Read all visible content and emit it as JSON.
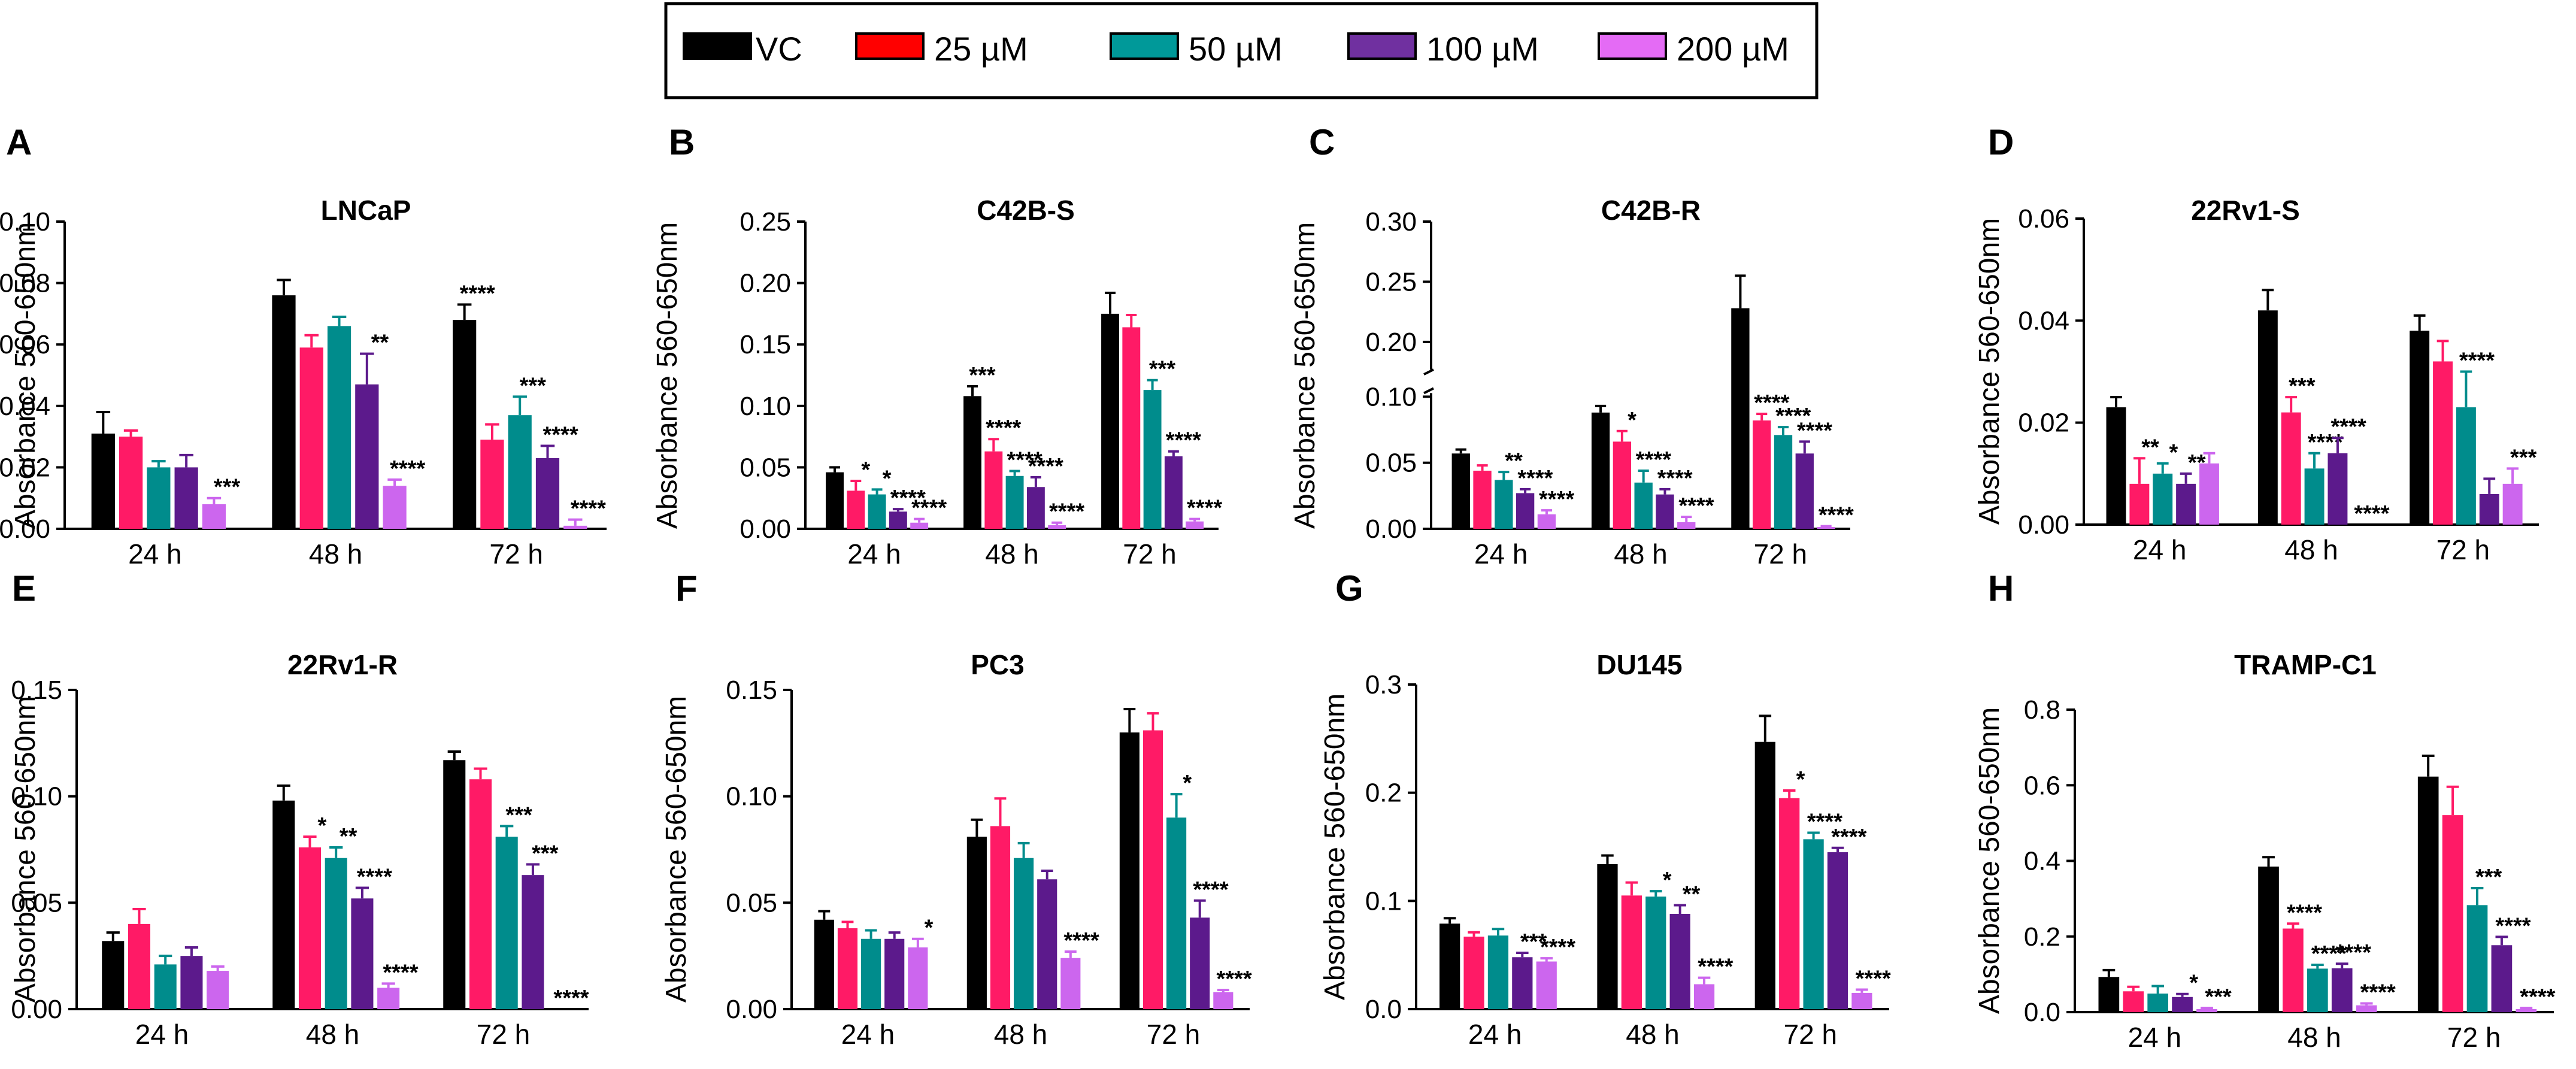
{
  "legend": {
    "items": [
      {
        "label": "VC",
        "color": "#000000"
      },
      {
        "label": "25 µM",
        "color": "#ff0000"
      },
      {
        "label": "50 µM",
        "color": "#009999"
      },
      {
        "label": "100 µM",
        "color": "#7030a0"
      },
      {
        "label": "200 µM",
        "color": "#e46bf5"
      }
    ]
  },
  "bar_colors": [
    "#000000",
    "#ff1a66",
    "#008c8c",
    "#5c1a8c",
    "#cc66ee"
  ],
  "chart_data": [
    {
      "panel": "A",
      "type": "bar",
      "title": "LNCaP",
      "ylabel": "Absorbance 560-650nm",
      "ylim": [
        0,
        0.1
      ],
      "yticks": [
        "0.00",
        "0.02",
        "0.04",
        "0.06",
        "0.08",
        "0.10"
      ],
      "categories": [
        "24 h",
        "48 h",
        "72 h"
      ],
      "series": [
        {
          "name": "VC",
          "values": [
            0.031,
            0.076,
            0.068
          ],
          "errors": [
            0.007,
            0.005,
            0.005
          ]
        },
        {
          "name": "25 µM",
          "values": [
            0.03,
            0.059,
            0.029
          ],
          "errors": [
            0.002,
            0.004,
            0.005
          ]
        },
        {
          "name": "50 µM",
          "values": [
            0.02,
            0.066,
            0.037
          ],
          "errors": [
            0.002,
            0.003,
            0.006
          ]
        },
        {
          "name": "100 µM",
          "values": [
            0.02,
            0.047,
            0.023
          ],
          "errors": [
            0.004,
            0.01,
            0.004
          ]
        },
        {
          "name": "200 µM",
          "values": [
            0.008,
            0.014,
            0.001
          ],
          "errors": [
            0.002,
            0.002,
            0.002
          ]
        }
      ],
      "stars": [
        [
          "",
          "",
          "",
          "",
          "***"
        ],
        [
          "",
          "",
          "",
          "**",
          "****"
        ],
        [
          "****",
          "",
          "***",
          "****",
          "****"
        ]
      ]
    },
    {
      "panel": "B",
      "type": "bar",
      "title": "C42B-S",
      "ylabel": "Absorbance 560-650nm",
      "ylim": [
        0,
        0.25
      ],
      "yticks": [
        "0.00",
        "0.05",
        "0.10",
        "0.15",
        "0.20",
        "0.25"
      ],
      "categories": [
        "24 h",
        "48 h",
        "72 h"
      ],
      "series": [
        {
          "name": "VC",
          "values": [
            0.046,
            0.108,
            0.175
          ],
          "errors": [
            0.004,
            0.008,
            0.017
          ]
        },
        {
          "name": "25 µM",
          "values": [
            0.031,
            0.063,
            0.164
          ],
          "errors": [
            0.008,
            0.01,
            0.01
          ]
        },
        {
          "name": "50 µM",
          "values": [
            0.028,
            0.043,
            0.113
          ],
          "errors": [
            0.004,
            0.004,
            0.008
          ]
        },
        {
          "name": "100 µM",
          "values": [
            0.014,
            0.034,
            0.059
          ],
          "errors": [
            0.002,
            0.008,
            0.004
          ]
        },
        {
          "name": "200 µM",
          "values": [
            0.005,
            0.003,
            0.006
          ],
          "errors": [
            0.003,
            0.002,
            0.002
          ]
        }
      ],
      "stars": [
        [
          "",
          "*",
          "*",
          "****",
          "****"
        ],
        [
          "***",
          "****",
          "****",
          "****",
          "****"
        ],
        [
          "",
          "",
          "***",
          "****",
          "****"
        ]
      ]
    },
    {
      "panel": "C",
      "type": "bar",
      "title": "C42B-R",
      "ylabel": "Absorbance 560-650nm",
      "ylim": [
        0,
        0.3
      ],
      "ybreak": [
        0.1,
        0.18
      ],
      "yticks": [
        "0.00",
        "0.05",
        "0.10",
        "0.20",
        "0.25",
        "0.30"
      ],
      "categories": [
        "24 h",
        "48 h",
        "72 h"
      ],
      "series": [
        {
          "name": "VC",
          "values": [
            0.057,
            0.088,
            0.228
          ],
          "errors": [
            0.003,
            0.005,
            0.027
          ]
        },
        {
          "name": "25 µM",
          "values": [
            0.044,
            0.066,
            0.082
          ],
          "errors": [
            0.004,
            0.008,
            0.005
          ]
        },
        {
          "name": "50 µM",
          "values": [
            0.037,
            0.035,
            0.071
          ],
          "errors": [
            0.006,
            0.009,
            0.006
          ]
        },
        {
          "name": "100 µM",
          "values": [
            0.027,
            0.026,
            0.057
          ],
          "errors": [
            0.003,
            0.004,
            0.009
          ]
        },
        {
          "name": "200 µM",
          "values": [
            0.011,
            0.005,
            0.001
          ],
          "errors": [
            0.003,
            0.004,
            0.001
          ]
        }
      ],
      "stars": [
        [
          "",
          "",
          "**",
          "****",
          "****"
        ],
        [
          "",
          "*",
          "****",
          "****",
          "****"
        ],
        [
          "",
          "****",
          "****",
          "****",
          "****"
        ]
      ]
    },
    {
      "panel": "D",
      "type": "bar",
      "title": "22Rv1-S",
      "ylabel": "Absorbance 560-650nm",
      "ylim": [
        0,
        0.06
      ],
      "yticks": [
        "0.00",
        "0.02",
        "0.04",
        "0.06"
      ],
      "categories": [
        "24 h",
        "48 h",
        "72 h"
      ],
      "series": [
        {
          "name": "VC",
          "values": [
            0.023,
            0.042,
            0.038
          ],
          "errors": [
            0.002,
            0.004,
            0.003
          ]
        },
        {
          "name": "25 µM",
          "values": [
            0.008,
            0.022,
            0.032
          ],
          "errors": [
            0.005,
            0.003,
            0.004
          ]
        },
        {
          "name": "50 µM",
          "values": [
            0.01,
            0.011,
            0.023
          ],
          "errors": [
            0.002,
            0.003,
            0.007
          ]
        },
        {
          "name": "100 µM",
          "values": [
            0.008,
            0.014,
            0.006
          ],
          "errors": [
            0.002,
            0.003,
            0.003
          ]
        },
        {
          "name": "200 µM",
          "values": [
            0.012,
            0.0,
            0.008
          ],
          "errors": [
            0.002,
            0.0,
            0.003
          ]
        }
      ],
      "stars": [
        [
          "",
          "**",
          "*",
          "**",
          ""
        ],
        [
          "",
          "***",
          "****",
          "****",
          "****"
        ],
        [
          "",
          "",
          "****",
          "",
          "***"
        ]
      ]
    },
    {
      "panel": "E",
      "type": "bar",
      "title": "22Rv1-R",
      "ylabel": "Absorbance 560-650nm",
      "ylim": [
        0,
        0.15
      ],
      "yticks": [
        "0.00",
        "0.05",
        "0.10",
        "0.15"
      ],
      "categories": [
        "24 h",
        "48 h",
        "72 h"
      ],
      "series": [
        {
          "name": "VC",
          "values": [
            0.032,
            0.098,
            0.117
          ],
          "errors": [
            0.004,
            0.007,
            0.004
          ]
        },
        {
          "name": "25 µM",
          "values": [
            0.04,
            0.076,
            0.108
          ],
          "errors": [
            0.007,
            0.005,
            0.005
          ]
        },
        {
          "name": "50 µM",
          "values": [
            0.021,
            0.071,
            0.081
          ],
          "errors": [
            0.004,
            0.005,
            0.005
          ]
        },
        {
          "name": "100 µM",
          "values": [
            0.025,
            0.052,
            0.063
          ],
          "errors": [
            0.004,
            0.005,
            0.005
          ]
        },
        {
          "name": "200 µM",
          "values": [
            0.018,
            0.01,
            0.0
          ],
          "errors": [
            0.002,
            0.002,
            0.0
          ]
        }
      ],
      "stars": [
        [
          "",
          "",
          "",
          "",
          ""
        ],
        [
          "",
          "*",
          "**",
          "****",
          "****"
        ],
        [
          "",
          "",
          "***",
          "***",
          "****"
        ]
      ]
    },
    {
      "panel": "F",
      "type": "bar",
      "title": "PC3",
      "ylabel": "Absorbance 560-650nm",
      "ylim": [
        0,
        0.15
      ],
      "yticks": [
        "0.00",
        "0.05",
        "0.10",
        "0.15"
      ],
      "categories": [
        "24 h",
        "48 h",
        "72 h"
      ],
      "series": [
        {
          "name": "VC",
          "values": [
            0.042,
            0.081,
            0.13
          ],
          "errors": [
            0.004,
            0.008,
            0.011
          ]
        },
        {
          "name": "25 µM",
          "values": [
            0.038,
            0.086,
            0.131
          ],
          "errors": [
            0.003,
            0.013,
            0.008
          ]
        },
        {
          "name": "50 µM",
          "values": [
            0.033,
            0.071,
            0.09
          ],
          "errors": [
            0.004,
            0.007,
            0.011
          ]
        },
        {
          "name": "100 µM",
          "values": [
            0.033,
            0.061,
            0.043
          ],
          "errors": [
            0.003,
            0.004,
            0.008
          ]
        },
        {
          "name": "200 µM",
          "values": [
            0.029,
            0.024,
            0.008
          ],
          "errors": [
            0.004,
            0.003,
            0.001
          ]
        }
      ],
      "stars": [
        [
          "",
          "",
          "",
          "",
          "*"
        ],
        [
          "",
          "",
          "",
          "",
          "****"
        ],
        [
          "",
          "",
          "*",
          "****",
          "****"
        ]
      ]
    },
    {
      "panel": "G",
      "type": "bar",
      "title": "DU145",
      "ylabel": "Absorbance 560-650nm",
      "ylim": [
        0,
        0.3
      ],
      "yticks": [
        "0.0",
        "0.1",
        "0.2",
        "0.3"
      ],
      "categories": [
        "24 h",
        "48 h",
        "72 h"
      ],
      "series": [
        {
          "name": "VC",
          "values": [
            0.079,
            0.134,
            0.247
          ],
          "errors": [
            0.005,
            0.008,
            0.024
          ]
        },
        {
          "name": "25 µM",
          "values": [
            0.067,
            0.105,
            0.195
          ],
          "errors": [
            0.004,
            0.012,
            0.007
          ]
        },
        {
          "name": "50 µM",
          "values": [
            0.068,
            0.104,
            0.157
          ],
          "errors": [
            0.006,
            0.005,
            0.006
          ]
        },
        {
          "name": "100 µM",
          "values": [
            0.048,
            0.088,
            0.145
          ],
          "errors": [
            0.004,
            0.008,
            0.004
          ]
        },
        {
          "name": "200 µM",
          "values": [
            0.044,
            0.023,
            0.015
          ],
          "errors": [
            0.003,
            0.006,
            0.003
          ]
        }
      ],
      "stars": [
        [
          "",
          "",
          "",
          "***",
          "****"
        ],
        [
          "",
          "",
          "*",
          "**",
          "****"
        ],
        [
          "",
          "*",
          "****",
          "****",
          "****"
        ]
      ]
    },
    {
      "panel": "H",
      "type": "bar",
      "title": "TRAMP-C1",
      "ylabel": "Absorbance 560-650nm",
      "ylim": [
        0,
        0.8
      ],
      "yticks": [
        "0.0",
        "0.2",
        "0.4",
        "0.6",
        "0.8"
      ],
      "categories": [
        "24 h",
        "48 h",
        "72 h"
      ],
      "series": [
        {
          "name": "VC",
          "values": [
            0.093,
            0.385,
            0.623
          ],
          "errors": [
            0.018,
            0.025,
            0.055
          ]
        },
        {
          "name": "25 µM",
          "values": [
            0.055,
            0.221,
            0.521
          ],
          "errors": [
            0.012,
            0.013,
            0.075
          ]
        },
        {
          "name": "50 µM",
          "values": [
            0.049,
            0.115,
            0.283
          ],
          "errors": [
            0.02,
            0.01,
            0.045
          ]
        },
        {
          "name": "100 µM",
          "values": [
            0.04,
            0.116,
            0.177
          ],
          "errors": [
            0.008,
            0.012,
            0.022
          ]
        },
        {
          "name": "200 µM",
          "values": [
            0.008,
            0.018,
            0.008
          ],
          "errors": [
            0.003,
            0.005,
            0.003
          ]
        }
      ],
      "stars": [
        [
          "",
          "",
          "",
          "*",
          "***"
        ],
        [
          "",
          "****",
          "****",
          "****",
          "****"
        ],
        [
          "",
          "",
          "***",
          "****",
          "****"
        ]
      ]
    }
  ]
}
